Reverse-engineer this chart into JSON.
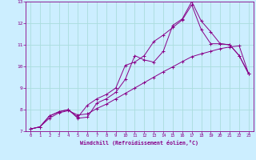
{
  "xlabel": "Windchill (Refroidissement éolien,°C)",
  "background_color": "#cceeff",
  "grid_color": "#aadddd",
  "line_color": "#880088",
  "xlim": [
    -0.5,
    23.5
  ],
  "ylim": [
    7,
    13
  ],
  "xticks": [
    0,
    1,
    2,
    3,
    4,
    5,
    6,
    7,
    8,
    9,
    10,
    11,
    12,
    13,
    14,
    15,
    16,
    17,
    18,
    19,
    20,
    21,
    22,
    23
  ],
  "yticks": [
    7,
    8,
    9,
    10,
    11,
    12,
    13
  ],
  "line1_x": [
    0,
    1,
    2,
    3,
    4,
    5,
    6,
    7,
    8,
    9,
    10,
    11,
    12,
    13,
    14,
    15,
    16,
    17,
    18,
    19,
    20,
    21,
    22,
    23
  ],
  "line1_y": [
    7.1,
    7.2,
    7.7,
    7.9,
    8.0,
    7.65,
    8.2,
    8.5,
    8.7,
    9.0,
    10.05,
    10.2,
    10.5,
    11.15,
    11.45,
    11.8,
    12.15,
    12.85,
    11.7,
    11.05,
    11.05,
    11.0,
    10.5,
    9.65
  ],
  "line2_x": [
    0,
    1,
    2,
    3,
    4,
    5,
    6,
    7,
    8,
    9,
    10,
    11,
    12,
    13,
    14,
    15,
    16,
    17,
    18,
    19,
    20,
    21,
    22,
    23
  ],
  "line2_y": [
    7.1,
    7.2,
    7.7,
    7.9,
    8.0,
    7.6,
    7.65,
    8.3,
    8.5,
    8.8,
    9.4,
    10.5,
    10.3,
    10.2,
    10.7,
    11.9,
    12.2,
    13.0,
    12.1,
    11.6,
    11.05,
    11.0,
    10.5,
    9.65
  ],
  "line3_x": [
    0,
    1,
    2,
    3,
    4,
    5,
    6,
    7,
    8,
    9,
    10,
    11,
    12,
    13,
    14,
    15,
    16,
    17,
    18,
    19,
    20,
    21,
    22,
    23
  ],
  "line3_y": [
    7.1,
    7.2,
    7.6,
    7.85,
    7.95,
    7.75,
    7.8,
    8.05,
    8.25,
    8.5,
    8.75,
    9.0,
    9.25,
    9.5,
    9.75,
    9.98,
    10.22,
    10.45,
    10.58,
    10.7,
    10.82,
    10.9,
    10.95,
    9.65
  ]
}
